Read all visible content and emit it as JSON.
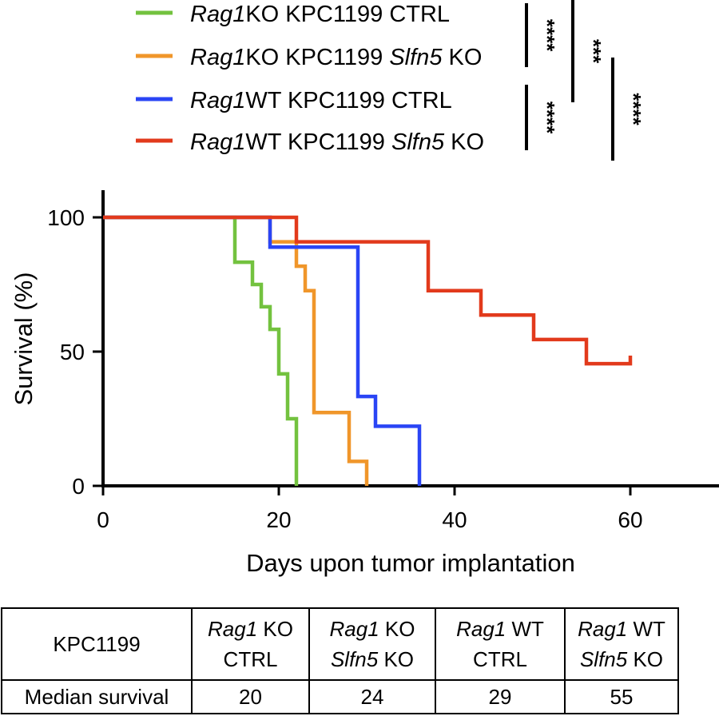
{
  "chart_data": {
    "type": "line",
    "step": true,
    "xlabel": "Days upon tumor implantation",
    "ylabel": "Survival (%)",
    "xlim": [
      0,
      70
    ],
    "ylim": [
      0,
      100
    ],
    "xticks": [
      0,
      20,
      40,
      60
    ],
    "yticks": [
      0,
      50,
      100
    ],
    "grid": false,
    "legend_position": "top",
    "series": [
      {
        "name_italic": "Rag1",
        "name_rest": "KO KPC1199 CTRL",
        "name_italic2": "",
        "name_end": "",
        "color": "#73c23f",
        "points": [
          [
            0,
            100
          ],
          [
            15,
            100
          ],
          [
            15,
            83.3
          ],
          [
            17,
            83.3
          ],
          [
            17,
            75
          ],
          [
            18,
            75
          ],
          [
            18,
            66.7
          ],
          [
            19,
            66.7
          ],
          [
            19,
            58.3
          ],
          [
            20,
            58.3
          ],
          [
            20,
            41.7
          ],
          [
            21,
            41.7
          ],
          [
            21,
            25
          ],
          [
            22,
            25
          ],
          [
            22,
            0
          ]
        ]
      },
      {
        "name_italic": "Rag1",
        "name_rest": "KO KPC1199 ",
        "name_italic2": "Slfn5",
        "name_end": " KO",
        "color": "#f0962a",
        "points": [
          [
            0,
            100
          ],
          [
            19,
            100
          ],
          [
            19,
            90.9
          ],
          [
            22,
            90.9
          ],
          [
            22,
            81.8
          ],
          [
            23,
            81.8
          ],
          [
            23,
            72.7
          ],
          [
            24,
            72.7
          ],
          [
            24,
            27.3
          ],
          [
            28,
            27.3
          ],
          [
            28,
            9.1
          ],
          [
            30,
            9.1
          ],
          [
            30,
            0
          ]
        ]
      },
      {
        "name_italic": "Rag1",
        "name_rest": "WT KPC1199 CTRL",
        "name_italic2": "",
        "name_end": "",
        "color": "#2a45f5",
        "points": [
          [
            0,
            100
          ],
          [
            19,
            100
          ],
          [
            19,
            88.9
          ],
          [
            29,
            88.9
          ],
          [
            29,
            33.3
          ],
          [
            31,
            33.3
          ],
          [
            31,
            22.2
          ],
          [
            36,
            22.2
          ],
          [
            36,
            0
          ]
        ]
      },
      {
        "name_italic": "Rag1",
        "name_rest": "WT KPC1199 ",
        "name_italic2": "Slfn5",
        "name_end": " KO",
        "color": "#e23a1c",
        "points": [
          [
            0,
            100
          ],
          [
            22,
            100
          ],
          [
            22,
            90.9
          ],
          [
            37,
            90.9
          ],
          [
            37,
            72.7
          ],
          [
            43,
            72.7
          ],
          [
            43,
            63.6
          ],
          [
            49,
            63.6
          ],
          [
            49,
            54.5
          ],
          [
            55,
            54.5
          ],
          [
            55,
            45.5
          ],
          [
            60,
            45.5
          ],
          [
            60,
            48.5
          ]
        ]
      }
    ],
    "significance": [
      {
        "stars": "****"
      },
      {
        "stars": "***"
      },
      {
        "stars": "****"
      },
      {
        "stars": "****"
      }
    ]
  },
  "table": {
    "corner": "KPC1199",
    "columns": [
      {
        "line1_it": "Rag1",
        "line1_rest": " KO",
        "line2_it": "",
        "line2_rest": "CTRL"
      },
      {
        "line1_it": "Rag1",
        "line1_rest": " KO",
        "line2_it": "Slfn5",
        "line2_rest": "  KO"
      },
      {
        "line1_it": "Rag1",
        "line1_rest": " WT",
        "line2_it": "",
        "line2_rest": "CTRL"
      },
      {
        "line1_it": "Rag1",
        "line1_rest": " WT",
        "line2_it": "Slfn5",
        "line2_rest": "  KO"
      }
    ],
    "row_label": "Median survival",
    "values": [
      "20",
      "24",
      "29",
      "55"
    ]
  }
}
